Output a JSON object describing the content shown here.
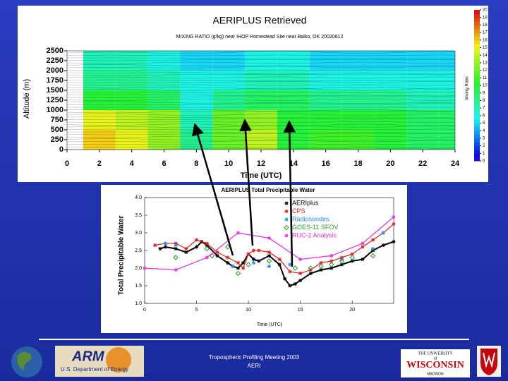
{
  "chart_data": [
    {
      "type": "contour",
      "title": "AERIPLUS Retrieved",
      "subtitle": "MIXING RATIO (g/kg)   near IHOP Homestead Site near Balko, OK 20020612",
      "x_label": "Time (UTC)",
      "y_label": "Altitude (m)",
      "colorbar_label": "Mixing Ratio",
      "xlim": [
        0,
        24
      ],
      "xticks": [
        0,
        2,
        4,
        6,
        8,
        10,
        12,
        14,
        16,
        18,
        20,
        22,
        24
      ],
      "ylim": [
        0,
        2500
      ],
      "yticks": [
        0,
        250,
        500,
        750,
        1000,
        1250,
        1500,
        1750,
        2000,
        2250,
        2500
      ],
      "clim": [
        0,
        20
      ],
      "cticks": [
        0,
        1,
        2,
        3,
        4,
        5,
        6,
        7,
        8,
        9,
        10,
        11,
        12,
        13,
        14,
        15,
        16,
        17,
        18,
        19,
        20
      ],
      "x": [
        2,
        4,
        6,
        8,
        10,
        12,
        14,
        16,
        18,
        20,
        22,
        24
      ],
      "y": [
        250,
        750,
        1250,
        1750,
        2250
      ],
      "z": [
        [
          16,
          15,
          13,
          8,
          12,
          14,
          10,
          11,
          11,
          10,
          9,
          9
        ],
        [
          15,
          14,
          13,
          7,
          12,
          13,
          10,
          10,
          10,
          10,
          9,
          9
        ],
        [
          10,
          10,
          9,
          6,
          8,
          9,
          9,
          8,
          8,
          8,
          7,
          7
        ],
        [
          8,
          8,
          7,
          6,
          6,
          7,
          7,
          6,
          6,
          6,
          6,
          6
        ],
        [
          7,
          7,
          6,
          5,
          5,
          6,
          6,
          5,
          5,
          5,
          5,
          5
        ]
      ]
    },
    {
      "type": "line",
      "title": "AERIPLUS Total Precipitable Water",
      "x_label": "Time (UTC)",
      "y_label": "Total Precipitable Water",
      "xlim": [
        0,
        24
      ],
      "xticks": [
        0,
        5,
        10,
        15,
        20
      ],
      "ylim": [
        1.0,
        4.0
      ],
      "yticks": [
        {
          "value": 1.0,
          "label": "1.0"
        },
        {
          "value": 1.5,
          "label": "1.5"
        },
        {
          "value": 2.0,
          "label": "2.0"
        },
        {
          "value": 2.5,
          "label": "2.5"
        },
        {
          "value": 3.0,
          "label": "3.0"
        },
        {
          "value": 3.5,
          "label": "3.5"
        },
        {
          "value": 4.0,
          "label": "4.0"
        }
      ],
      "series": [
        {
          "name": "AERIplus",
          "color": "#000000",
          "marker": "star",
          "line": true,
          "x": [
            1.5,
            2,
            3,
            4,
            5,
            5.5,
            6,
            7,
            8,
            8.5,
            9,
            9.5,
            10,
            10.5,
            11,
            12,
            13,
            13.5,
            14,
            14.5,
            15,
            16,
            17,
            18,
            19,
            20,
            21,
            22,
            23,
            24
          ],
          "values": [
            2.55,
            2.6,
            2.55,
            2.45,
            2.6,
            2.75,
            2.65,
            2.35,
            2.15,
            2.05,
            2.0,
            2.15,
            2.4,
            2.25,
            2.2,
            2.35,
            2.1,
            1.7,
            1.5,
            1.55,
            1.65,
            1.85,
            1.95,
            2.0,
            2.1,
            2.2,
            2.25,
            2.5,
            2.65,
            2.75
          ]
        },
        {
          "name": "CPS",
          "color": "#e02020",
          "marker": "star",
          "line": true,
          "x": [
            1,
            2,
            3,
            4,
            5,
            6,
            7,
            8,
            9,
            9.5,
            10,
            10.5,
            11,
            12,
            13,
            14,
            15,
            16,
            17,
            18,
            19,
            20,
            21,
            22,
            23,
            24
          ],
          "values": [
            2.65,
            2.7,
            2.7,
            2.55,
            2.8,
            2.7,
            2.45,
            2.3,
            2.15,
            2.0,
            2.4,
            2.5,
            2.5,
            2.45,
            2.25,
            1.9,
            1.85,
            1.95,
            2.15,
            2.2,
            2.3,
            2.4,
            2.6,
            2.8,
            3.0,
            3.25
          ]
        },
        {
          "name": "Radiosondes",
          "color": "#2090e0",
          "marker": "star",
          "line": false,
          "x": [
            2,
            3,
            8.5,
            10.5,
            12,
            14,
            19,
            22,
            23
          ],
          "values": [
            2.7,
            2.65,
            2.05,
            2.15,
            2.05,
            2.1,
            2.25,
            2.55,
            3.0
          ]
        },
        {
          "name": "GOES-11 SFOV",
          "color": "#2a9a2a",
          "marker": "diamond",
          "line": false,
          "x": [
            3,
            6,
            6.5,
            8,
            9,
            10,
            12,
            14.5,
            16,
            17,
            18,
            19,
            20,
            22
          ],
          "values": [
            2.3,
            2.55,
            2.35,
            2.6,
            1.85,
            2.1,
            2.2,
            2.0,
            2.0,
            2.05,
            2.1,
            2.2,
            2.3,
            2.35
          ]
        },
        {
          "name": "RUC-2 Analysis",
          "color": "#e030e0",
          "marker": "star",
          "line": true,
          "x": [
            0,
            3,
            6,
            9,
            12,
            15,
            18,
            21,
            24
          ],
          "values": [
            2.0,
            1.95,
            2.3,
            3.0,
            2.85,
            2.25,
            2.35,
            2.7,
            3.45
          ]
        }
      ]
    }
  ],
  "footer": {
    "lines": [
      "Tropospheric Profiling Meeting 2003",
      "AERI"
    ],
    "arm_logo": {
      "name": "ARM",
      "agency": "U.S. Department of Energy"
    },
    "uw_logo": {
      "top": "THE UNIVERSITY",
      "of": "of",
      "name": "WISCONSIN",
      "city": "MADISON"
    }
  }
}
